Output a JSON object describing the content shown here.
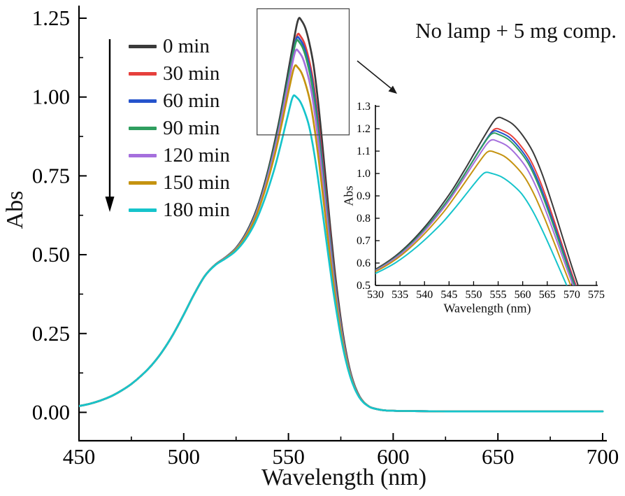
{
  "figure": {
    "annotation": "No lamp + 5 mg comp.",
    "background_color": "#ffffff"
  },
  "chart_data": [
    {
      "id": "main",
      "type": "line",
      "title": "No lamp + 5 mg comp.",
      "xlabel": "Wavelength (nm)",
      "ylabel": "Abs",
      "xlim": [
        450,
        700
      ],
      "ylim": [
        0,
        1.25
      ],
      "xticks": [
        450,
        500,
        550,
        600,
        650,
        700
      ],
      "yticks": [
        0,
        0.25,
        0.5,
        0.75,
        1.0,
        1.25
      ],
      "ytick_labels": [
        "0.00",
        "0.25",
        "0.50",
        "0.75",
        "1.00",
        "1.25"
      ],
      "grid": false,
      "legend": {
        "position": "upper-left",
        "entries": [
          "0 min",
          "30 min",
          "60 min",
          "90 min",
          "120 min",
          "150 min",
          "180 min"
        ]
      },
      "base_curve": {
        "peak_wavelength": 555,
        "peak_abs": 1.25,
        "window_nm": 20,
        "wavelengths": [
          450,
          455,
          460,
          465,
          470,
          475,
          480,
          485,
          490,
          495,
          500,
          505,
          510,
          515,
          520,
          525,
          530,
          535,
          540,
          545,
          548,
          550,
          552,
          554,
          555,
          556,
          558,
          560,
          562,
          564,
          566,
          568,
          570,
          572,
          574,
          576,
          578,
          580,
          582,
          584,
          586,
          588,
          590,
          595,
          600,
          610,
          625,
          650,
          675,
          700
        ],
        "abs_0min": [
          0.02,
          0.027,
          0.037,
          0.05,
          0.068,
          0.09,
          0.118,
          0.152,
          0.195,
          0.248,
          0.31,
          0.375,
          0.432,
          0.468,
          0.492,
          0.522,
          0.572,
          0.648,
          0.76,
          0.905,
          1.01,
          1.085,
          1.16,
          1.23,
          1.25,
          1.245,
          1.22,
          1.17,
          1.1,
          0.995,
          0.865,
          0.725,
          0.585,
          0.455,
          0.345,
          0.25,
          0.175,
          0.118,
          0.078,
          0.05,
          0.032,
          0.021,
          0.014,
          0.007,
          0.005,
          0.004,
          0.003,
          0.003,
          0.003,
          0.003
        ]
      },
      "series": [
        {
          "label": "0 min",
          "color": "#3a3a3a",
          "peak_abs": 1.25,
          "peak_shift_nm": 0
        },
        {
          "label": "30 min",
          "color": "#e6403c",
          "peak_abs": 1.2,
          "peak_shift_nm": -0.5
        },
        {
          "label": "60 min",
          "color": "#2553cc",
          "peak_abs": 1.19,
          "peak_shift_nm": -0.8
        },
        {
          "label": "90 min",
          "color": "#2f9e5f",
          "peak_abs": 1.18,
          "peak_shift_nm": -1.0
        },
        {
          "label": "120 min",
          "color": "#a56fdd",
          "peak_abs": 1.15,
          "peak_shift_nm": -1.3
        },
        {
          "label": "150 min",
          "color": "#c59310",
          "peak_abs": 1.1,
          "peak_shift_nm": -1.8
        },
        {
          "label": "180 min",
          "color": "#16c4cb",
          "peak_abs": 1.005,
          "peak_shift_nm": -2.5
        }
      ],
      "zoom_box": {
        "x1": 535,
        "x2": 579,
        "y1": 0.88,
        "y2": 1.28
      }
    },
    {
      "id": "inset",
      "type": "line",
      "role": "zoom of main peak region",
      "xlabel": "Wavelength (nm)",
      "ylabel": "Abs",
      "xlim": [
        530,
        575
      ],
      "ylim": [
        0.5,
        1.3
      ],
      "xticks": [
        530,
        535,
        540,
        545,
        550,
        555,
        560,
        565,
        570,
        575
      ],
      "yticks": [
        0.5,
        0.6,
        0.7,
        0.8,
        0.9,
        1.0,
        1.1,
        1.2,
        1.3
      ],
      "ytick_labels": [
        "0.5",
        "0.6",
        "0.7",
        "0.8",
        "0.9",
        "1.0",
        "1.1",
        "1.2",
        "1.3"
      ]
    }
  ]
}
